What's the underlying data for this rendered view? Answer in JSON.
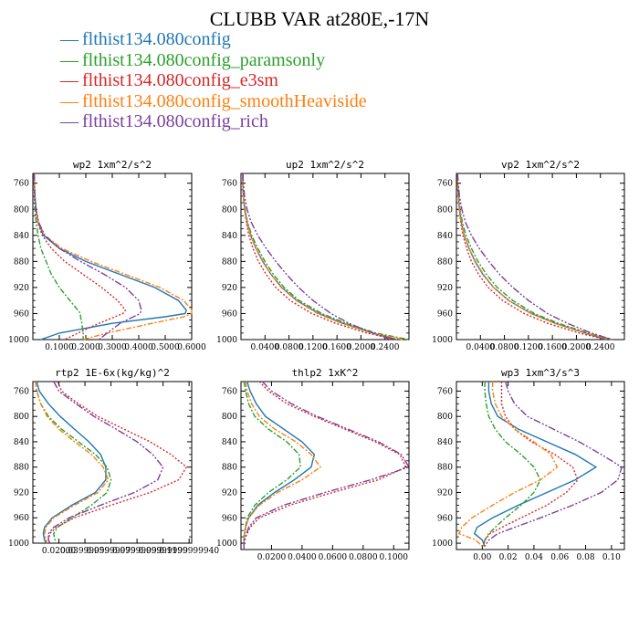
{
  "title": "CLUBB VAR at280E,-17N",
  "legend": [
    {
      "name": "flthist134.080config",
      "color": "#1f77b4"
    },
    {
      "name": "flthist134.080config_paramsonly",
      "color": "#2ca02c"
    },
    {
      "name": "flthist134.080config_e3sm",
      "color": "#d62728"
    },
    {
      "name": "flthist134.080config_smoothHeaviside",
      "color": "#ff7f0e"
    },
    {
      "name": "flthist134.080config_rich",
      "color": "#7b3fa0"
    }
  ],
  "chart_data": [
    {
      "type": "line",
      "title": "wp2   1xm^2/s^2",
      "xlim": [
        0,
        0.6
      ],
      "ylim": [
        1000,
        745
      ],
      "xticks": [
        0.1,
        0.2,
        0.3,
        0.4,
        0.5,
        0.6
      ],
      "xtick_labels": [
        "0.1000",
        "0.2000",
        "0.3000",
        "0.4000",
        "0.5000",
        "0.6000"
      ],
      "yticks": [
        760,
        800,
        840,
        880,
        920,
        960,
        1000
      ],
      "pressure": [
        745,
        760,
        780,
        800,
        820,
        840,
        860,
        880,
        900,
        920,
        940,
        955,
        960,
        965,
        975,
        990,
        1000
      ],
      "series": [
        {
          "name": "flthist134.080config",
          "values": [
            0.005,
            0.005,
            0.008,
            0.012,
            0.02,
            0.04,
            0.1,
            0.2,
            0.33,
            0.46,
            0.55,
            0.58,
            0.575,
            0.5,
            0.3,
            0.1,
            0.03
          ]
        },
        {
          "name": "flthist134.080config_paramsonly",
          "values": [
            0.005,
            0.005,
            0.006,
            0.008,
            0.012,
            0.02,
            0.03,
            0.05,
            0.07,
            0.1,
            0.14,
            0.17,
            0.18,
            0.18,
            0.185,
            0.19,
            0.19
          ]
        },
        {
          "name": "flthist134.080config_e3sm",
          "values": [
            0.005,
            0.005,
            0.007,
            0.01,
            0.018,
            0.035,
            0.07,
            0.12,
            0.19,
            0.26,
            0.32,
            0.35,
            0.34,
            0.31,
            0.25,
            0.17,
            0.12
          ]
        },
        {
          "name": "flthist134.080config_smoothHeaviside",
          "values": [
            0.005,
            0.005,
            0.008,
            0.012,
            0.02,
            0.045,
            0.11,
            0.22,
            0.35,
            0.48,
            0.57,
            0.6,
            0.6,
            0.57,
            0.45,
            0.28,
            0.19
          ]
        },
        {
          "name": "flthist134.080config_rich",
          "values": [
            0.005,
            0.005,
            0.008,
            0.012,
            0.022,
            0.045,
            0.1,
            0.18,
            0.27,
            0.35,
            0.4,
            0.41,
            0.405,
            0.38,
            0.33,
            0.28,
            0.25
          ]
        }
      ]
    },
    {
      "type": "line",
      "title": "up2   1xm^2/s^2",
      "xlim": [
        0,
        0.28
      ],
      "ylim": [
        1000,
        745
      ],
      "xticks": [
        0.04,
        0.08,
        0.12,
        0.16,
        0.2,
        0.24
      ],
      "xtick_labels": [
        "0.0400",
        "0.0800",
        "0.1200",
        "0.1600",
        "0.2000",
        "0.2400"
      ],
      "yticks": [
        760,
        800,
        840,
        880,
        920,
        960,
        1000
      ],
      "pressure": [
        745,
        760,
        780,
        800,
        820,
        840,
        860,
        880,
        900,
        920,
        940,
        960,
        975,
        990,
        1000
      ],
      "series": [
        {
          "name": "flthist134.080config",
          "values": [
            0.003,
            0.003,
            0.004,
            0.006,
            0.01,
            0.016,
            0.025,
            0.036,
            0.05,
            0.068,
            0.093,
            0.13,
            0.17,
            0.22,
            0.26
          ]
        },
        {
          "name": "flthist134.080config_paramsonly",
          "values": [
            0.003,
            0.003,
            0.004,
            0.007,
            0.011,
            0.018,
            0.028,
            0.04,
            0.054,
            0.072,
            0.097,
            0.135,
            0.175,
            0.225,
            0.28
          ]
        },
        {
          "name": "flthist134.080config_e3sm",
          "values": [
            0.003,
            0.003,
            0.004,
            0.006,
            0.009,
            0.013,
            0.02,
            0.029,
            0.042,
            0.058,
            0.082,
            0.118,
            0.158,
            0.21,
            0.26
          ]
        },
        {
          "name": "flthist134.080config_smoothHeaviside",
          "values": [
            0.003,
            0.003,
            0.004,
            0.006,
            0.01,
            0.016,
            0.025,
            0.037,
            0.05,
            0.067,
            0.092,
            0.128,
            0.168,
            0.218,
            0.27
          ]
        },
        {
          "name": "flthist134.080config_rich",
          "values": [
            0.003,
            0.004,
            0.006,
            0.01,
            0.017,
            0.028,
            0.042,
            0.058,
            0.076,
            0.096,
            0.12,
            0.15,
            0.18,
            0.22,
            0.25
          ]
        }
      ]
    },
    {
      "type": "line",
      "title": "vp2   1xm^2/s^2",
      "xlim": [
        0,
        0.28
      ],
      "ylim": [
        1000,
        745
      ],
      "xticks": [
        0.04,
        0.08,
        0.12,
        0.16,
        0.2,
        0.24
      ],
      "xtick_labels": [
        "0.0400",
        "0.0800",
        "0.1200",
        "0.1600",
        "0.2000",
        "0.2400"
      ],
      "yticks": [
        760,
        800,
        840,
        880,
        920,
        960,
        1000
      ],
      "pressure": [
        745,
        760,
        780,
        800,
        820,
        840,
        860,
        880,
        900,
        920,
        940,
        960,
        975,
        990,
        1000
      ],
      "series": [
        {
          "name": "flthist134.080config",
          "values": [
            0.002,
            0.002,
            0.003,
            0.005,
            0.008,
            0.013,
            0.021,
            0.031,
            0.044,
            0.062,
            0.087,
            0.125,
            0.165,
            0.215,
            0.25
          ]
        },
        {
          "name": "flthist134.080config_paramsonly",
          "values": [
            0.002,
            0.002,
            0.004,
            0.006,
            0.01,
            0.016,
            0.025,
            0.036,
            0.05,
            0.068,
            0.094,
            0.13,
            0.17,
            0.22,
            0.26
          ]
        },
        {
          "name": "flthist134.080config_e3sm",
          "values": [
            0.002,
            0.002,
            0.003,
            0.005,
            0.007,
            0.011,
            0.017,
            0.025,
            0.037,
            0.053,
            0.077,
            0.113,
            0.152,
            0.205,
            0.25
          ]
        },
        {
          "name": "flthist134.080config_smoothHeaviside",
          "values": [
            0.002,
            0.002,
            0.003,
            0.005,
            0.008,
            0.013,
            0.021,
            0.032,
            0.045,
            0.062,
            0.087,
            0.124,
            0.164,
            0.215,
            0.26
          ]
        },
        {
          "name": "flthist134.080config_rich",
          "values": [
            0.002,
            0.003,
            0.005,
            0.009,
            0.015,
            0.025,
            0.038,
            0.054,
            0.072,
            0.094,
            0.12,
            0.152,
            0.185,
            0.225,
            0.26
          ]
        }
      ]
    },
    {
      "type": "line",
      "title": "rtp2   1E-6x(kg/kg)^2",
      "xlim": [
        0,
        0.122
      ],
      "ylim": [
        1000,
        745
      ],
      "xticks": [
        0.02,
        0.04,
        0.06,
        0.08,
        0.1,
        0.12
      ],
      "xtick_labels": [
        "0.02000",
        "0.03999999",
        "0.05999999",
        "0.07999999",
        "0.09999999",
        "0.1199999940"
      ],
      "yticks": [
        760,
        800,
        840,
        880,
        920,
        960,
        1000
      ],
      "pressure": [
        745,
        760,
        780,
        800,
        820,
        840,
        860,
        880,
        900,
        920,
        940,
        960,
        975,
        985,
        995,
        1000
      ],
      "series": [
        {
          "name": "flthist134.080config",
          "values": [
            0.003,
            0.005,
            0.012,
            0.021,
            0.032,
            0.043,
            0.052,
            0.056,
            0.056,
            0.048,
            0.03,
            0.015,
            0.009,
            0.008,
            0.009,
            0.01
          ]
        },
        {
          "name": "flthist134.080config_paramsonly",
          "values": [
            0.002,
            0.003,
            0.006,
            0.012,
            0.022,
            0.035,
            0.048,
            0.057,
            0.06,
            0.057,
            0.045,
            0.03,
            0.019,
            0.016,
            0.017,
            0.018
          ]
        },
        {
          "name": "flthist134.080config_e3sm",
          "values": [
            0.019,
            0.022,
            0.035,
            0.05,
            0.07,
            0.09,
            0.106,
            0.118,
            0.112,
            0.09,
            0.06,
            0.032,
            0.018,
            0.013,
            0.012,
            0.013
          ]
        },
        {
          "name": "flthist134.080config_smoothHeaviside",
          "values": [
            0.002,
            0.003,
            0.006,
            0.011,
            0.02,
            0.032,
            0.045,
            0.054,
            0.058,
            0.05,
            0.032,
            0.016,
            0.01,
            0.009,
            0.01,
            0.011
          ]
        },
        {
          "name": "flthist134.080config_rich",
          "values": [
            0.016,
            0.02,
            0.033,
            0.047,
            0.064,
            0.08,
            0.092,
            0.1,
            0.096,
            0.078,
            0.052,
            0.028,
            0.016,
            0.012,
            0.012,
            0.013
          ]
        }
      ]
    },
    {
      "type": "line",
      "title": "thlp2   1xK^2",
      "xlim": [
        0,
        0.11
      ],
      "ylim": [
        1010,
        745
      ],
      "xticks": [
        0.02,
        0.04,
        0.06,
        0.08,
        0.1
      ],
      "xtick_labels": [
        "0.0200",
        "0.0400",
        "0.0600",
        "0.0800",
        "0.1000"
      ],
      "yticks": [
        760,
        800,
        840,
        880,
        920,
        960,
        1000
      ],
      "pressure": [
        745,
        760,
        780,
        800,
        820,
        840,
        860,
        880,
        900,
        920,
        940,
        960,
        975,
        990,
        1000,
        1010
      ],
      "series": [
        {
          "name": "flthist134.080config",
          "values": [
            0.004,
            0.006,
            0.01,
            0.016,
            0.028,
            0.04,
            0.048,
            0.046,
            0.035,
            0.022,
            0.011,
            0.005,
            0.003,
            0.002,
            0.002,
            0.002
          ]
        },
        {
          "name": "flthist134.080config_paramsonly",
          "values": [
            0.002,
            0.003,
            0.005,
            0.009,
            0.018,
            0.03,
            0.038,
            0.039,
            0.03,
            0.018,
            0.009,
            0.004,
            0.003,
            0.002,
            0.002,
            0.002
          ]
        },
        {
          "name": "flthist134.080config_e3sm",
          "values": [
            0.012,
            0.018,
            0.03,
            0.048,
            0.068,
            0.088,
            0.104,
            0.108,
            0.09,
            0.06,
            0.032,
            0.012,
            0.006,
            0.003,
            0.002,
            0.002
          ]
        },
        {
          "name": "flthist134.080config_smoothHeaviside",
          "values": [
            0.003,
            0.004,
            0.007,
            0.012,
            0.022,
            0.036,
            0.046,
            0.052,
            0.04,
            0.024,
            0.012,
            0.005,
            0.003,
            0.002,
            0.002,
            0.002
          ]
        },
        {
          "name": "flthist134.080config_rich",
          "values": [
            0.014,
            0.02,
            0.033,
            0.05,
            0.07,
            0.09,
            0.105,
            0.11,
            0.085,
            0.055,
            0.028,
            0.01,
            0.005,
            0.003,
            0.002,
            0.002
          ]
        }
      ]
    },
    {
      "type": "line",
      "title": "wp3   1xm^3/s^3",
      "xlim": [
        -0.02,
        0.11
      ],
      "ylim": [
        1010,
        745
      ],
      "xticks": [
        0.0,
        0.02,
        0.04,
        0.06,
        0.08,
        0.1
      ],
      "xtick_labels": [
        "0.00",
        "0.02",
        "0.04",
        "0.06",
        "0.08",
        "0.10"
      ],
      "yticks": [
        760,
        800,
        840,
        880,
        920,
        960,
        1000
      ],
      "pressure": [
        745,
        760,
        780,
        800,
        820,
        840,
        860,
        880,
        900,
        920,
        940,
        960,
        975,
        985,
        995,
        1005
      ],
      "series": [
        {
          "name": "flthist134.080config",
          "values": [
            0.005,
            0.005,
            0.007,
            0.012,
            0.028,
            0.05,
            0.072,
            0.088,
            0.072,
            0.05,
            0.028,
            0.008,
            -0.004,
            -0.006,
            0.0,
            0.002
          ]
        },
        {
          "name": "flthist134.080config_paramsonly",
          "values": [
            0.002,
            0.002,
            0.003,
            0.005,
            0.01,
            0.018,
            0.03,
            0.04,
            0.045,
            0.04,
            0.03,
            0.018,
            0.01,
            0.005,
            0.002,
            0.001
          ]
        },
        {
          "name": "flthist134.080config_e3sm",
          "values": [
            0.015,
            0.015,
            0.015,
            0.018,
            0.025,
            0.038,
            0.056,
            0.07,
            0.074,
            0.065,
            0.05,
            0.03,
            0.015,
            0.006,
            0.002,
            0.001
          ]
        },
        {
          "name": "flthist134.080config_smoothHeaviside",
          "values": [
            0.008,
            0.008,
            0.01,
            0.015,
            0.025,
            0.04,
            0.053,
            0.058,
            0.045,
            0.025,
            0.008,
            -0.008,
            -0.016,
            -0.018,
            -0.005,
            0.0
          ]
        },
        {
          "name": "flthist134.080config_rich",
          "values": [
            0.018,
            0.02,
            0.025,
            0.035,
            0.055,
            0.075,
            0.092,
            0.108,
            0.105,
            0.092,
            0.07,
            0.045,
            0.025,
            0.012,
            0.005,
            0.002
          ]
        }
      ]
    }
  ]
}
